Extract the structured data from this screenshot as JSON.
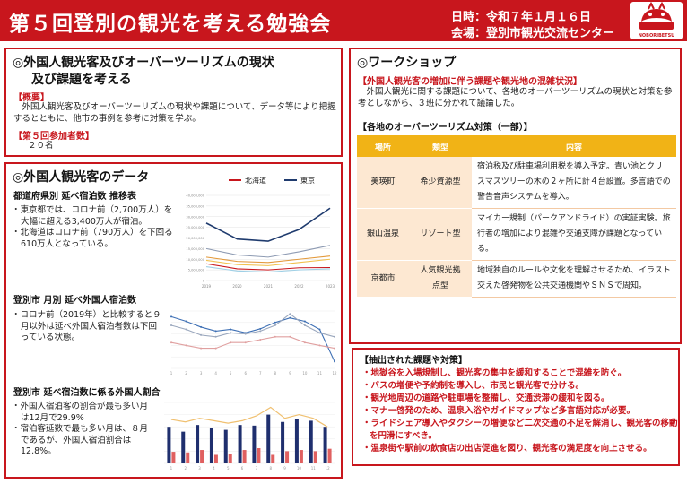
{
  "header": {
    "title": "第５回登別の観光を考える勉強会",
    "date": "日時：令和７年１月１６日",
    "venue": "会場：登別市観光交流センター",
    "logo_text": "NOBORIBETSU",
    "accent": "#c8161d"
  },
  "panel1": {
    "title_line1": "◎外国人観光客及びオーバーツーリズムの現状",
    "title_line2": "及び課題を考える",
    "overview_heading": "【概要】",
    "overview_text": "　外国人観光客及びオーバーツーリズムの現状や課題について、データ等により把握するとともに、他市の事例を参考に対策を学ぶ。",
    "count_heading": "【第５回参加者数】",
    "count_value": "２０名"
  },
  "panel2": {
    "title": "◎外国人観光客のデータ",
    "block1": {
      "heading": "都道府県別 延べ宿泊数 推移表",
      "bullets": [
        "・東京都では、コロナ前（2,700万人）を大幅に超える3,400万人が宿泊。",
        "・北海道はコロナ前（790万人）を下回る610万人となっている。"
      ]
    },
    "block2": {
      "heading": "登別市 月別 延べ外国人宿泊数",
      "bullets": [
        "・コロナ前（2019年）と比較すると９月以外は延べ外国人宿泊者数は下回っている状態。"
      ]
    },
    "block3": {
      "heading": "登別市 延べ宿泊数に係る外国人割合",
      "bullets": [
        "・外国人宿泊客の割合が最も多い月は12月で29.9%",
        "・宿泊客延数で最も多い月は、８月であるが、外国人宿泊割合は12.8%。"
      ]
    }
  },
  "chart_data": [
    {
      "type": "line",
      "legend": [
        "北海道",
        "東京"
      ],
      "legend_colors": [
        "#c8161d",
        "#1f3b6e"
      ],
      "x": [
        "2019",
        "2020",
        "2021",
        "2022",
        "2023"
      ],
      "y_ticks": [
        "40,000,000",
        "35,000,000",
        "30,000,000",
        "25,000,000",
        "20,000,000",
        "15,000,000",
        "10,000,000",
        "5,000,000",
        "0"
      ],
      "ylim": [
        0,
        40000000
      ],
      "series": [
        {
          "name": "東京",
          "color": "#1f3b6e",
          "values": [
            27000000,
            19500000,
            18500000,
            24000000,
            34000000
          ]
        },
        {
          "color": "#8e9bb3",
          "values": [
            15000000,
            12000000,
            11000000,
            13500000,
            16500000
          ]
        },
        {
          "color": "#e39a3c",
          "values": [
            11000000,
            9000000,
            8500000,
            10000000,
            11500000
          ]
        },
        {
          "color": "#f2c14e",
          "values": [
            9500000,
            7500000,
            7000000,
            8500000,
            10000000
          ]
        },
        {
          "name": "北海道",
          "color": "#c8161d",
          "values": [
            7900000,
            5500000,
            5000000,
            6000000,
            6100000
          ]
        },
        {
          "color": "#9fd0e6",
          "values": [
            6500000,
            4500000,
            4000000,
            5000000,
            5500000
          ]
        }
      ]
    },
    {
      "type": "line",
      "categories": [
        "1",
        "2",
        "3",
        "4",
        "5",
        "6",
        "7",
        "8",
        "9",
        "10",
        "11",
        "12"
      ],
      "series": [
        {
          "color": "#3d6fb4",
          "values": [
            9,
            8.2,
            7.2,
            6.5,
            6.8,
            6.2,
            6.9,
            8,
            8.8,
            8.2,
            6.8,
            1.2
          ]
        },
        {
          "color": "#9aa7bd",
          "values": [
            7.5,
            6.8,
            5.8,
            5.5,
            6.2,
            6.0,
            6.5,
            7.5,
            9.5,
            7.5,
            6.2,
            5.5
          ]
        },
        {
          "color": "#e0a0a0",
          "values": [
            4.5,
            4.0,
            3.5,
            3.5,
            4.5,
            4.5,
            5,
            5.5,
            5.5,
            4.5,
            4,
            3.5
          ]
        }
      ]
    },
    {
      "type": "bar",
      "categories": [
        "1",
        "2",
        "3",
        "4",
        "5",
        "6",
        "7",
        "8",
        "9",
        "10",
        "11",
        "12"
      ],
      "series": [
        {
          "color": "#1f2f6e",
          "values": [
            60,
            52,
            63,
            58,
            55,
            63,
            62,
            80,
            68,
            73,
            70,
            60
          ]
        },
        {
          "color": "#e06060",
          "values": [
            19,
            18,
            22,
            14,
            15,
            22,
            25,
            14,
            20,
            22,
            20,
            24
          ]
        }
      ],
      "line": {
        "color": "#f0c070",
        "values": [
          72,
          68,
          74,
          70,
          66,
          70,
          78,
          92,
          74,
          80,
          74,
          60
        ]
      }
    }
  ],
  "panel3": {
    "title": "◎ワークショップ",
    "ws_heading": "【外国人観光客の増加に伴う課題や観光地の混雑状況】",
    "ws_text": "　外国人観光に関する課題について、各地のオーバーツーリズムの現状と対策を参考としながら、３班に分かれて議論した。",
    "table_heading": "【各地のオーバーツーリズム対策（一部）】",
    "table": {
      "headers": [
        "場所",
        "類型",
        "内容"
      ],
      "rows": [
        {
          "place": "美瑛町",
          "type": "希少資源型",
          "content": "宿泊税及び駐車場利用税を導入予定。青い池とクリスマスツリーの木の２ヶ所に計４台設置。多言語での警告音声システムを導入。"
        },
        {
          "place": "銀山温泉",
          "type": "リゾート型",
          "content": "マイカー規制（パークアンドライド）の実証実験。旅行者の増加により混雑や交通支障が課題となっている。"
        },
        {
          "place": "京都市",
          "type": "人気観光拠点型",
          "content": "地域独自のルールや文化を理解させるため、イラスト交えた啓発物を公共交通機関やＳＮＳで周知。"
        }
      ]
    }
  },
  "panel4": {
    "heading": "【抽出された課題や対策】",
    "items": [
      "・地獄谷を入場規制し、観光客の集中を緩和することで混雑を防ぐ。",
      "・バスの増便や予約制を導入し、市民と観光客で分ける。",
      "・観光地周辺の道路や駐車場を整備し、交通渋滞の緩和を図る。",
      "・マナー啓発のため、温泉入浴やガイドマップなど多言語対応が必要。",
      "・ライドシェア導入やタクシーの増便など二次交通の不足を解消し、観光客の移動を円滑にすべき。",
      "・温泉街や駅前の飲食店の出店促進を図り、観光客の満足度を向上させる。"
    ]
  }
}
